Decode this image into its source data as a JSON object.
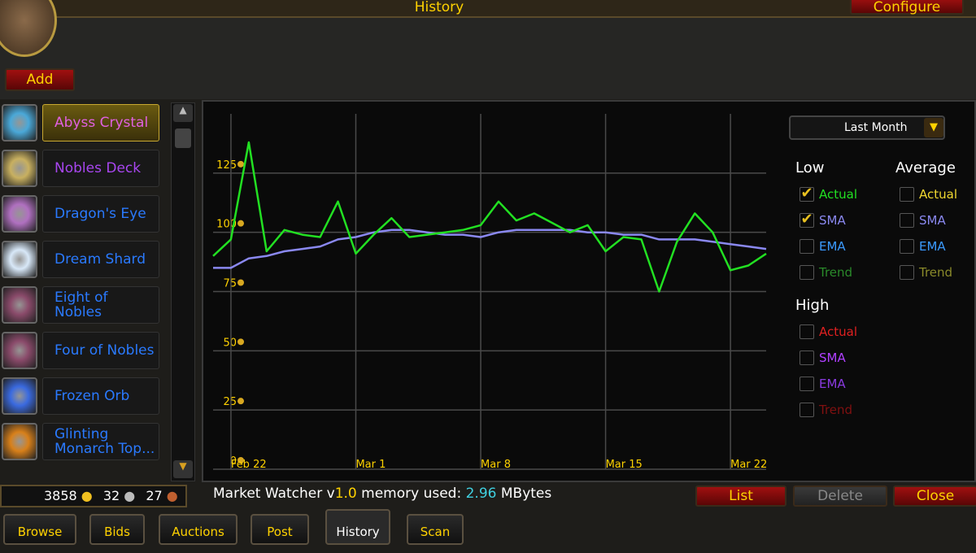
{
  "header": {
    "title": "History",
    "configure": "Configure",
    "add": "Add"
  },
  "items": {
    "selected": 0,
    "list": [
      {
        "name": "Abyss Crystal",
        "color": "#e060e0",
        "icon": "#4aa8d8"
      },
      {
        "name": "Nobles Deck",
        "color": "#a846f0",
        "icon": "#c8b060"
      },
      {
        "name": "Dragon's Eye",
        "color": "#2a7aff",
        "icon": "#b070c0"
      },
      {
        "name": "Dream Shard",
        "color": "#2a7aff",
        "icon": "#d8e8f8"
      },
      {
        "name": "Eight of Nobles",
        "color": "#2a7aff",
        "icon": "#8a4a6a"
      },
      {
        "name": "Four of Nobles",
        "color": "#2a7aff",
        "icon": "#8a4a6a"
      },
      {
        "name": "Frozen Orb",
        "color": "#2a7aff",
        "icon": "#3a6ae0"
      },
      {
        "name": "Glinting Monarch Top...",
        "color": "#2a7aff",
        "icon": "#d8801a"
      }
    ]
  },
  "chart_data": {
    "type": "line",
    "categories": [
      null,
      "Feb 22",
      null,
      null,
      null,
      null,
      null,
      null,
      "Mar 1",
      null,
      null,
      null,
      null,
      null,
      null,
      "Mar 8",
      null,
      null,
      null,
      null,
      null,
      null,
      "Mar 15",
      null,
      null,
      null,
      null,
      null,
      null,
      "Mar 22",
      null,
      null
    ],
    "series": [
      {
        "color": "#22e022",
        "values": [
          90,
          97,
          138,
          92,
          101,
          99,
          98,
          113,
          91,
          99,
          106,
          98,
          99,
          100,
          101,
          103,
          113,
          105,
          108,
          104,
          100,
          103,
          92,
          98,
          97,
          75,
          96,
          108,
          100,
          84,
          86,
          91
        ]
      },
      {
        "color": "#8a88f0",
        "values": [
          85,
          85,
          89,
          90,
          92,
          93,
          94,
          97,
          98,
          100,
          101,
          101,
          100,
          99,
          99,
          98,
          100,
          101,
          101,
          101,
          101,
          100,
          100,
          99,
          99,
          97,
          97,
          97,
          96,
          95,
          94,
          93
        ]
      }
    ],
    "ylim": [
      0,
      150
    ],
    "yticks": [
      0,
      25,
      50,
      75,
      100,
      125
    ],
    "grid": true
  },
  "range": "Last Month",
  "legend": [
    {
      "title": "Low",
      "items": [
        {
          "label": "Actual",
          "color": "#22e022",
          "checked": true
        },
        {
          "label": "SMA",
          "color": "#8a88f0",
          "checked": true
        },
        {
          "label": "EMA",
          "color": "#3a9aff",
          "checked": false
        },
        {
          "label": "Trend",
          "color": "#2a8a2a",
          "checked": false
        }
      ]
    },
    {
      "title": "Average",
      "items": [
        {
          "label": "Actual",
          "color": "#f0d830",
          "checked": false
        },
        {
          "label": "SMA",
          "color": "#8a88f0",
          "checked": false
        },
        {
          "label": "EMA",
          "color": "#3a9aff",
          "checked": false
        },
        {
          "label": "Trend",
          "color": "#8a8a2a",
          "checked": false
        }
      ]
    },
    {
      "title": "High",
      "items": [
        {
          "label": "Actual",
          "color": "#e02020",
          "checked": false
        },
        {
          "label": "SMA",
          "color": "#b040ff",
          "checked": false
        },
        {
          "label": "EMA",
          "color": "#8a3ae0",
          "checked": false
        },
        {
          "label": "Trend",
          "color": "#801010",
          "checked": false
        }
      ]
    }
  ],
  "status": {
    "name": "Market Watcher v",
    "version": "1.0",
    "memory_label": "memory used:",
    "memory": "2.96",
    "unit": "MBytes"
  },
  "money": {
    "gold": 3858,
    "silver": 32,
    "copper": 27
  },
  "buttons": {
    "list": "List",
    "delete": "Delete",
    "close": "Close"
  },
  "tabs": {
    "active": 4,
    "names": [
      "Browse",
      "Bids",
      "Auctions",
      "Post",
      "History",
      "Scan"
    ]
  }
}
